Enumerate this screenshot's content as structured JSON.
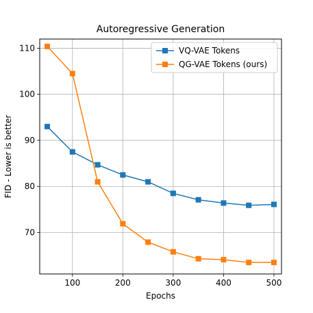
{
  "chart_data": {
    "type": "line",
    "title": "Autoregressive Generation",
    "xlabel": "Epochs",
    "ylabel": "FID - Lower is better",
    "x": [
      50,
      100,
      150,
      200,
      250,
      300,
      350,
      400,
      450,
      500
    ],
    "xlim": [
      35,
      515
    ],
    "ylim": [
      61,
      112
    ],
    "xticks": [
      100,
      200,
      300,
      400,
      500
    ],
    "yticks": [
      70,
      80,
      90,
      100,
      110
    ],
    "grid": true,
    "legend_position": "top-right",
    "series": [
      {
        "name": "VQ-VAE Tokens",
        "color": "#1f77b4",
        "marker": "square",
        "values": [
          93.0,
          87.5,
          84.7,
          82.5,
          81.0,
          78.5,
          77.1,
          76.4,
          75.9,
          76.1
        ]
      },
      {
        "name": "QG-VAE Tokens (ours)",
        "color": "#ff7f0e",
        "marker": "square",
        "values": [
          110.4,
          104.5,
          81.0,
          71.9,
          67.9,
          65.8,
          64.3,
          64.1,
          63.5,
          63.5
        ]
      }
    ]
  }
}
